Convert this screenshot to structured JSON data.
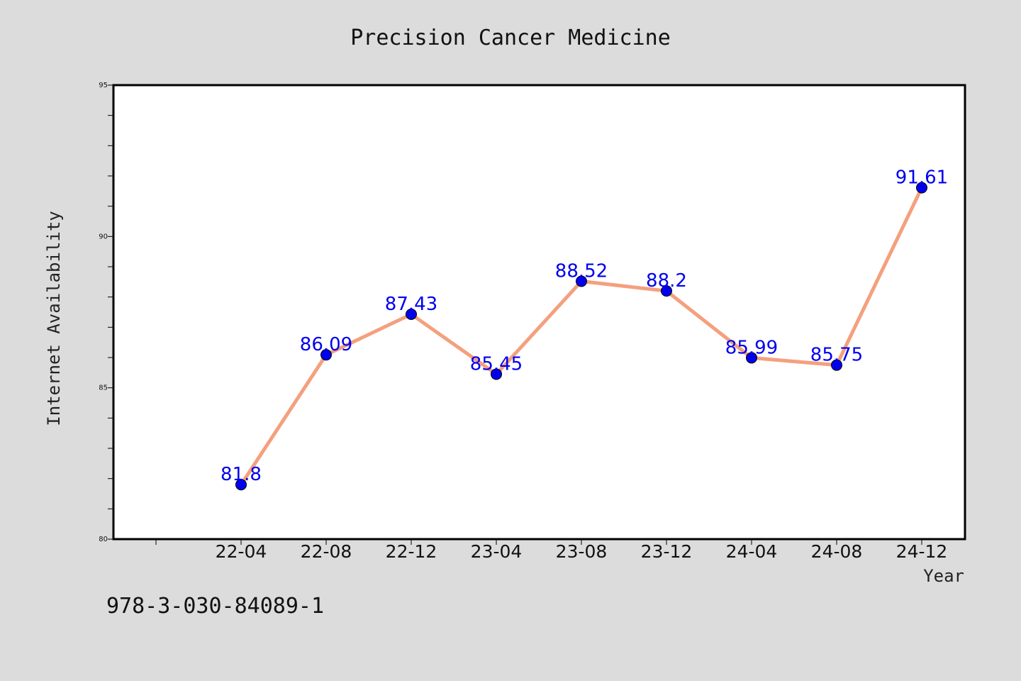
{
  "chart_data": {
    "type": "line",
    "title": "Precision Cancer Medicine",
    "xlabel": "Year",
    "ylabel": "Internet Availability",
    "categories": [
      "22-04",
      "22-08",
      "22-12",
      "23-04",
      "23-08",
      "23-12",
      "24-04",
      "24-08",
      "24-12"
    ],
    "series": [
      {
        "values": [
          81.8,
          86.09,
          87.43,
          85.45,
          88.52,
          88.2,
          85.99,
          85.75,
          91.61
        ],
        "labels": [
          "81.8",
          "86.09",
          "87.43",
          "85.45",
          "88.52",
          "88.2",
          "85.99",
          "85.75",
          "91.61"
        ]
      }
    ],
    "ylim": [
      80,
      95
    ],
    "yticks": [
      "80",
      "85",
      "90",
      "95"
    ],
    "grid": false,
    "line_color": "#f4a07e",
    "marker_color": "#0000ee",
    "label_color": "#0000ee"
  },
  "footer": {
    "text": "978-3-030-84089-1"
  }
}
